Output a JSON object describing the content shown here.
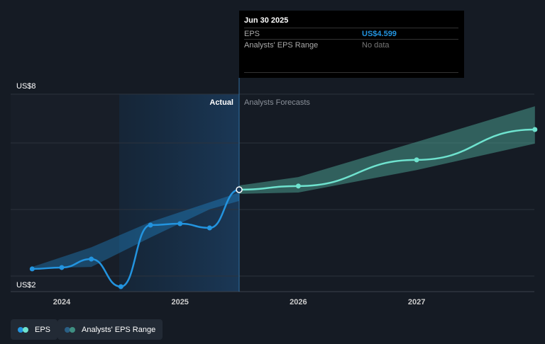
{
  "tooltip": {
    "date": "Jun 30 2025",
    "eps_label": "EPS",
    "eps_value": "US$4.599",
    "range_label": "Analysts' EPS Range",
    "range_value": "No data"
  },
  "legend": [
    {
      "label": "EPS"
    },
    {
      "label": "Analysts' EPS Range"
    }
  ],
  "colors": {
    "actual": "#2394df",
    "forecast": "#6fe3cf",
    "band_hist": "#2394df",
    "band_fc": "#4ea595"
  },
  "chart_data": {
    "type": "line",
    "y_tick_labels": [
      "US$8",
      "US$2"
    ],
    "x_tick_labels": [
      "2024",
      "2025",
      "2026",
      "2027"
    ],
    "section_labels": {
      "actual": "Actual",
      "forecast": "Analysts Forecasts"
    },
    "ylim": [
      2,
      8
    ],
    "series": [
      {
        "name": "EPS (actual)",
        "x": [
          2023.75,
          2024.0,
          2024.25,
          2024.5,
          2024.75,
          2025.0,
          2025.25,
          2025.5
        ],
        "y": [
          1.78,
          1.83,
          2.13,
          1.15,
          3.34,
          3.39,
          3.24,
          4.6
        ]
      },
      {
        "name": "EPS (forecast)",
        "x": [
          2025.5,
          2026.0,
          2027.0,
          2028.0
        ],
        "y": [
          4.6,
          4.73,
          5.66,
          6.74
        ]
      }
    ],
    "range_hist": {
      "x": [
        2023.75,
        2024.25,
        2024.75,
        2025.25,
        2025.5
      ],
      "low": [
        1.8,
        1.85,
        2.9,
        3.9,
        4.2
      ],
      "high": [
        1.85,
        2.55,
        3.45,
        4.15,
        4.5
      ]
    },
    "range_forecast": {
      "x": [
        2025.5,
        2026.0,
        2027.0,
        2028.0
      ],
      "low": [
        4.45,
        4.5,
        5.3,
        6.24
      ],
      "high": [
        4.75,
        5.05,
        6.3,
        7.57
      ]
    }
  }
}
